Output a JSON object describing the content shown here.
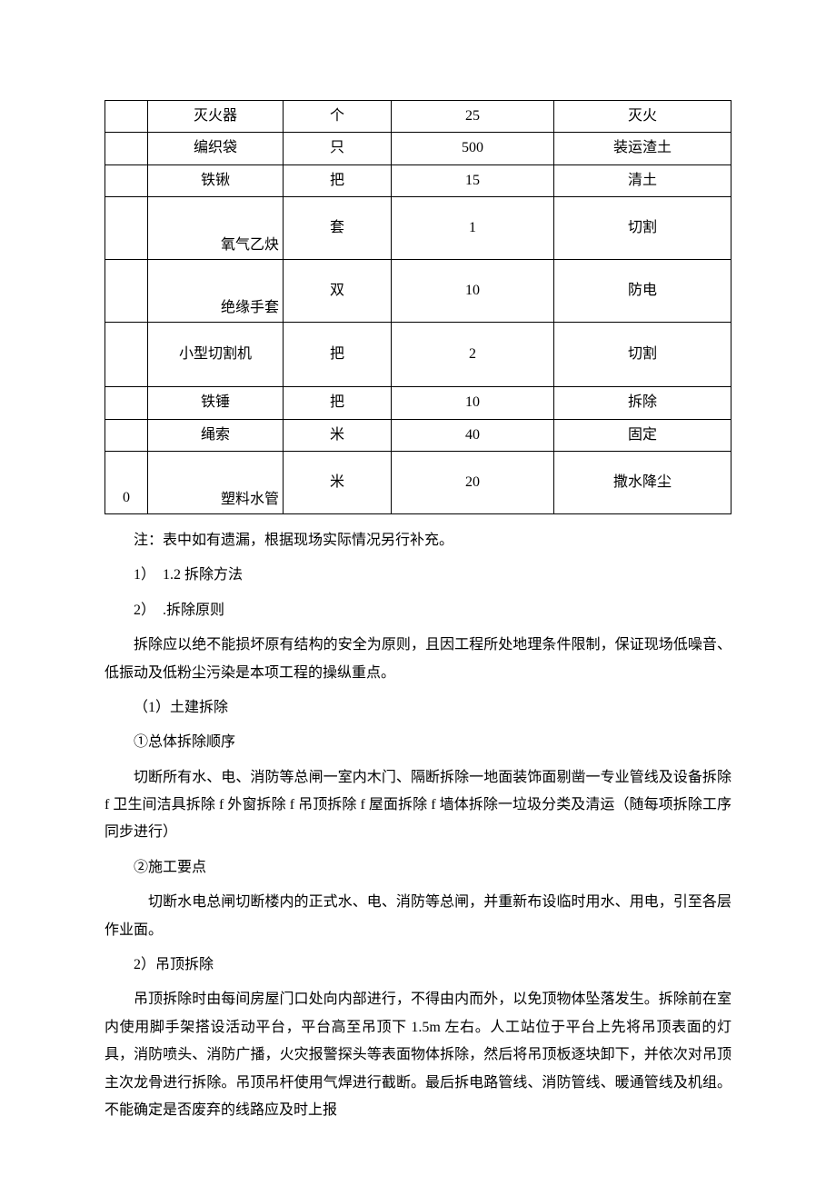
{
  "table": {
    "rows": [
      {
        "idx": "",
        "name": "灭火器",
        "unit": "个",
        "qty": "25",
        "use": "灭火",
        "nameClass": "",
        "tall": false
      },
      {
        "idx": "",
        "name": "编织袋",
        "unit": "只",
        "qty": "500",
        "use": "装运渣土",
        "nameClass": "",
        "tall": false
      },
      {
        "idx": "",
        "name": "铁锹",
        "unit": "把",
        "qty": "15",
        "use": "清土",
        "nameClass": "",
        "tall": false
      },
      {
        "idx": "",
        "name": "氧气乙炔",
        "unit": "套",
        "qty": "1",
        "use": "切割",
        "nameClass": "label-bottom",
        "tall": true
      },
      {
        "idx": "",
        "name": "绝缘手套",
        "unit": "双",
        "qty": "10",
        "use": "防电",
        "nameClass": "label-bottom",
        "tall": true
      },
      {
        "idx": "",
        "name": "小型切割机",
        "unit": "把",
        "qty": "2",
        "use": "切割",
        "nameClass": "",
        "tall": true
      },
      {
        "idx": "",
        "name": "铁锤",
        "unit": "把",
        "qty": "10",
        "use": "拆除",
        "nameClass": "",
        "tall": false
      },
      {
        "idx": "",
        "name": "绳索",
        "unit": "米",
        "qty": "40",
        "use": "固定",
        "nameClass": "",
        "tall": false
      },
      {
        "idx": "0",
        "name": "塑料水管",
        "unit": "米",
        "qty": "20",
        "use": "撒水降尘",
        "nameClass": "label-bottom",
        "tall": true
      }
    ]
  },
  "body": {
    "note": "注：表中如有遗漏，根据现场实际情况另行补充。",
    "sec1": "1）　1.2 拆除方法",
    "sec2": "2）　.拆除原则",
    "p1": "拆除应以绝不能损坏原有结构的安全为原则，且因工程所处地理条件限制，保证现场低噪音、低振动及低粉尘污染是本项工程的操纵重点。",
    "p2": "（1）土建拆除",
    "p3": "①总体拆除顺序",
    "p4": "切断所有水、电、消防等总闸一室内木门、隔断拆除一地面装饰面剔凿一专业管线及设备拆除 f 卫生间洁具拆除 f 外窗拆除 f 吊顶拆除 f 屋面拆除 f 墙体拆除一垃圾分类及清运（随每项拆除工序同步进行）",
    "p5": "②施工要点",
    "p6": "　切断水电总闸切断楼内的正式水、电、消防等总闸，并重新布设临时用水、用电，引至各层作业面。",
    "p7": "2）吊顶拆除",
    "p8": "吊顶拆除时由每间房屋门口处向内部进行，不得由内而外，以免顶物体坠落发生。拆除前在室内使用脚手架搭设活动平台，平台高至吊顶下 1.5m 左右。人工站位于平台上先将吊顶表面的灯具，消防喷头、消防广播，火灾报警探头等表面物体拆除，然后将吊顶板逐块卸下，并依次对吊顶主次龙骨进行拆除。吊顶吊杆使用气焊进行截断。最后拆电路管线、消防管线、暖通管线及机组。不能确定是否废弃的线路应及时上报"
  }
}
